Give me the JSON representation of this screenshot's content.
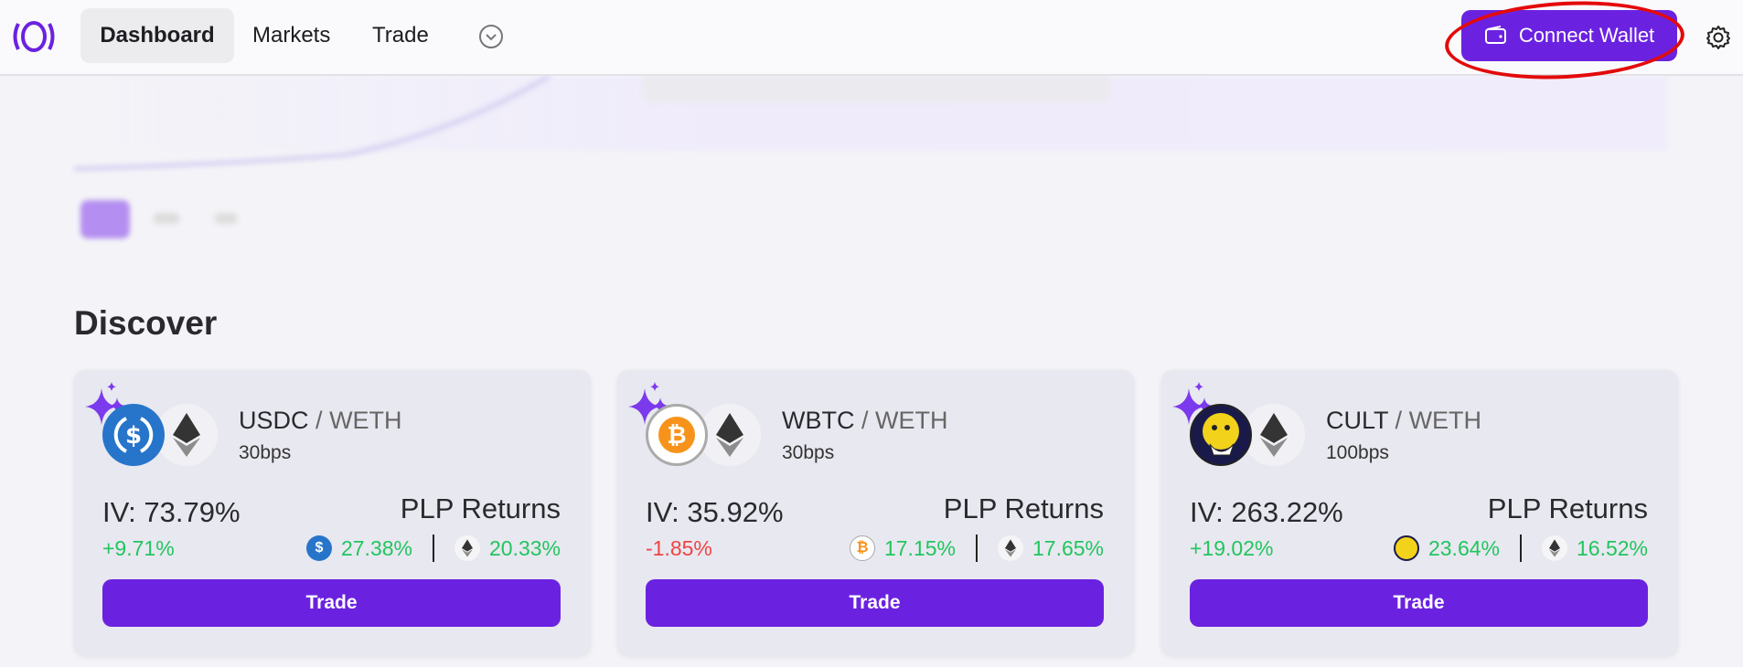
{
  "header": {
    "nav": [
      "Dashboard",
      "Markets",
      "Trade"
    ],
    "connect_wallet": "Connect Wallet"
  },
  "colors": {
    "accent": "#6b22e0",
    "positive": "#22c55e",
    "negative": "#ef4444",
    "annotation": "#e30a0a"
  },
  "discover": {
    "title": "Discover",
    "trade_label": "Trade",
    "plp_label": "PLP Returns",
    "cards": [
      {
        "base": "USDC",
        "sep": "/",
        "quote": "WETH",
        "fee": "30bps",
        "iv": "IV: 73.79%",
        "change": "+9.71%",
        "change_dir": "up",
        "base_return": "27.38%",
        "quote_return": "20.33%",
        "base_icon": "usdc-icon"
      },
      {
        "base": "WBTC",
        "sep": "/",
        "quote": "WETH",
        "fee": "30bps",
        "iv": "IV: 35.92%",
        "change": "-1.85%",
        "change_dir": "down",
        "base_return": "17.15%",
        "quote_return": "17.65%",
        "base_icon": "btc-icon"
      },
      {
        "base": "CULT",
        "sep": "/",
        "quote": "WETH",
        "fee": "100bps",
        "iv": "IV: 263.22%",
        "change": "+19.02%",
        "change_dir": "up",
        "base_return": "23.64%",
        "quote_return": "16.52%",
        "base_icon": "cult-icon"
      }
    ]
  }
}
